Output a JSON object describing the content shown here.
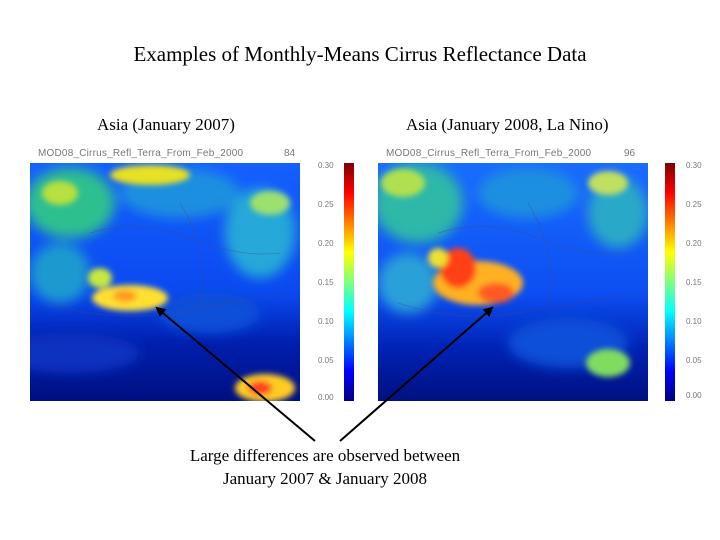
{
  "slide": {
    "title": "Examples of Monthly-Means Cirrus Reflectance Data",
    "captions": [
      "Asia (January 2007)",
      "Asia (January 2008, La Nino)"
    ],
    "note": [
      "Large differences are observed between",
      "January 2007 & January 2008"
    ]
  },
  "maps": [
    {
      "header": "MOD08_Cirrus_Refl_Terra_From_Feb_2000",
      "number": "84"
    },
    {
      "header": "MOD08_Cirrus_Refl_Terra_From_Feb_2000",
      "number": "96"
    }
  ],
  "colorbar": {
    "ticks": [
      "0.30",
      "0.25",
      "0.20",
      "0.15",
      "0.10",
      "0.05",
      "0.00"
    ],
    "colors": [
      "#00007f",
      "#0000ff",
      "#007fff",
      "#00ffff",
      "#7fff7f",
      "#ffff00",
      "#ff7f00",
      "#ff0000",
      "#7f0000"
    ]
  }
}
